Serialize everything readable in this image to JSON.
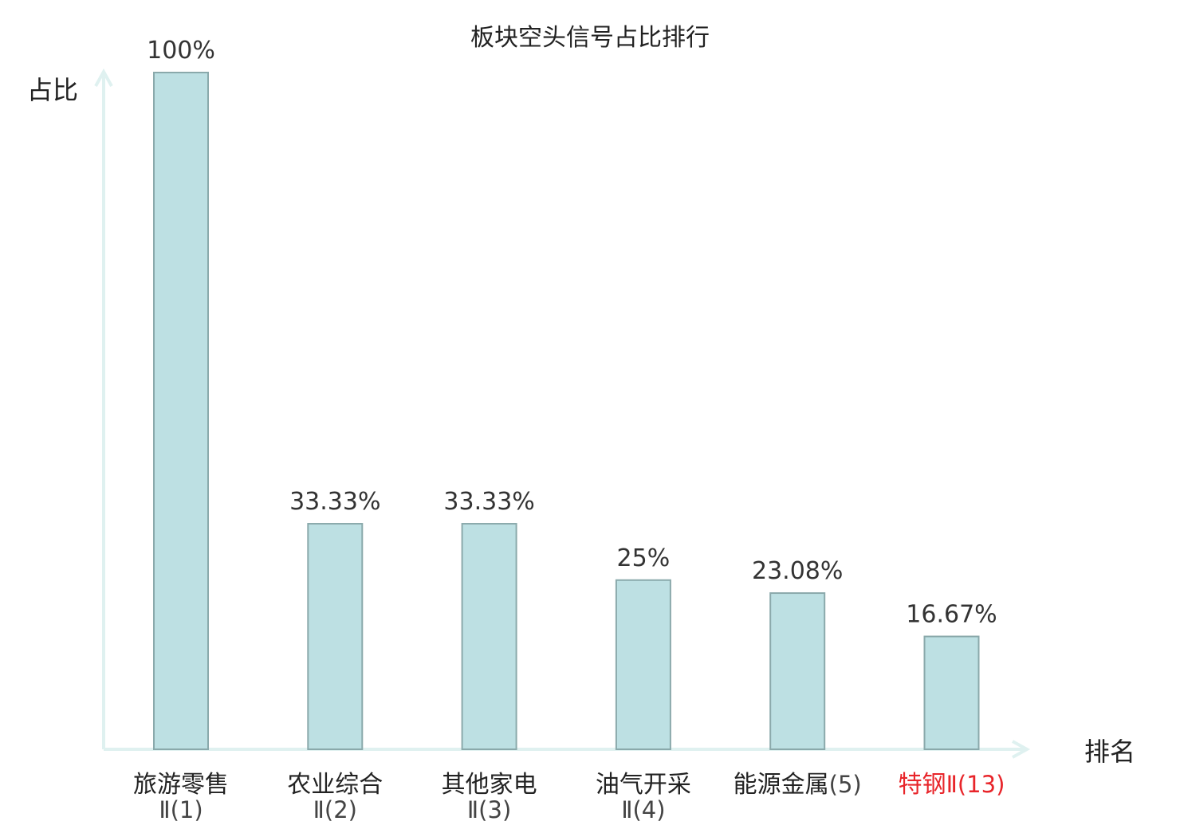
{
  "chart_data": {
    "type": "bar",
    "title": "板块空头信号占比排行",
    "ylabel": "占比",
    "xlabel": "排名",
    "ylim": [
      0,
      100
    ],
    "grid": false,
    "legend": "none",
    "categories": [
      {
        "name": "旅游零售",
        "rank": "Ⅱ(1)",
        "highlight": false
      },
      {
        "name": "农业综合",
        "rank": "Ⅱ(2)",
        "highlight": false
      },
      {
        "name": "其他家电",
        "rank": "Ⅱ(3)",
        "highlight": false
      },
      {
        "name": "油气开采",
        "rank": "Ⅱ(4)",
        "highlight": false
      },
      {
        "name": "能源金属",
        "rank": "(5)",
        "highlight": false
      },
      {
        "name": "特钢",
        "rank": "Ⅱ(13)",
        "highlight": true
      }
    ],
    "values": [
      100,
      33.33,
      33.33,
      25,
      23.08,
      16.67
    ],
    "value_labels": [
      "100%",
      "33.33%",
      "33.33%",
      "25%",
      "23.08%",
      "16.67%"
    ]
  },
  "colors": {
    "bar_fill": "#bde0e3",
    "bar_stroke": "#8aa9ab",
    "axis": "#dff1f0",
    "label_text": "#333333",
    "highlight_text": "#e8252a"
  }
}
